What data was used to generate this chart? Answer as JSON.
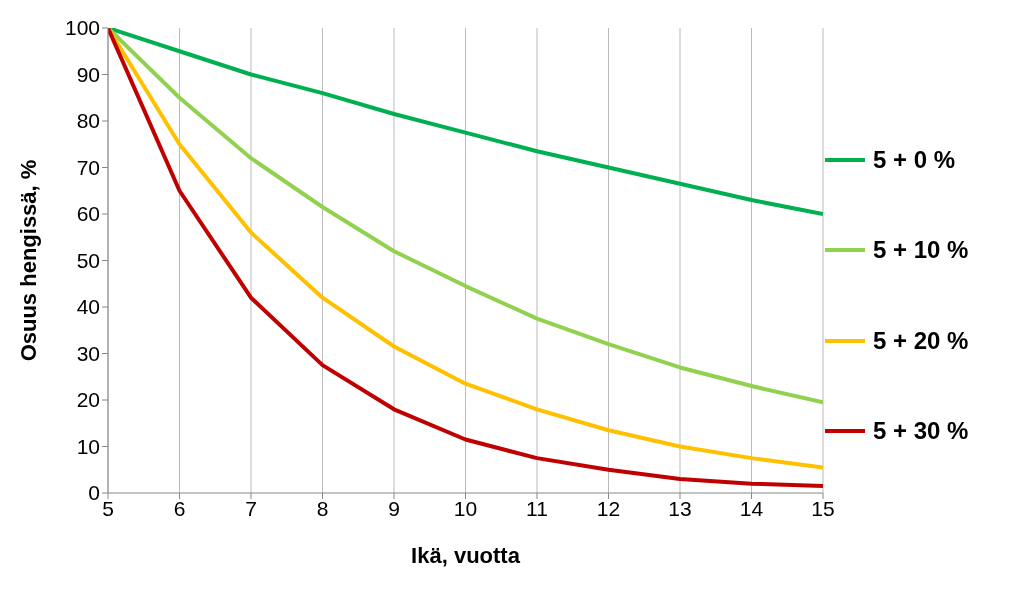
{
  "chart_data": {
    "type": "line",
    "xlabel": "Ikä, vuotta",
    "ylabel": "Osuus hengissä, %",
    "x": [
      5,
      6,
      7,
      8,
      9,
      10,
      11,
      12,
      13,
      14,
      15
    ],
    "series": [
      {
        "name": "5 + 0 %",
        "color": "#00b050",
        "values": [
          100,
          95,
          90,
          86,
          81.5,
          77.5,
          73.5,
          70,
          66.5,
          63,
          60
        ]
      },
      {
        "name": "5 + 10 %",
        "color": "#92d050",
        "values": [
          100,
          85,
          72,
          61.5,
          52,
          44.5,
          37.5,
          32,
          27,
          23,
          19.5
        ]
      },
      {
        "name": "5 + 20 %",
        "color": "#ffc000",
        "values": [
          100,
          75,
          56,
          42,
          31.5,
          23.5,
          18,
          13.5,
          10,
          7.5,
          5.5
        ]
      },
      {
        "name": "5 + 30 %",
        "color": "#c00000",
        "values": [
          100,
          65,
          42,
          27.5,
          18,
          11.5,
          7.5,
          5,
          3,
          2,
          1.5
        ]
      }
    ],
    "xlim": [
      5,
      15
    ],
    "xticks": [
      5,
      6,
      7,
      8,
      9,
      10,
      11,
      12,
      13,
      14,
      15
    ],
    "ylim": [
      0,
      100
    ],
    "yticks": [
      0,
      10,
      20,
      30,
      40,
      50,
      60,
      70,
      80,
      90,
      100
    ],
    "grid": "x",
    "legend": "right",
    "marker": "none",
    "line_style": "solid"
  }
}
